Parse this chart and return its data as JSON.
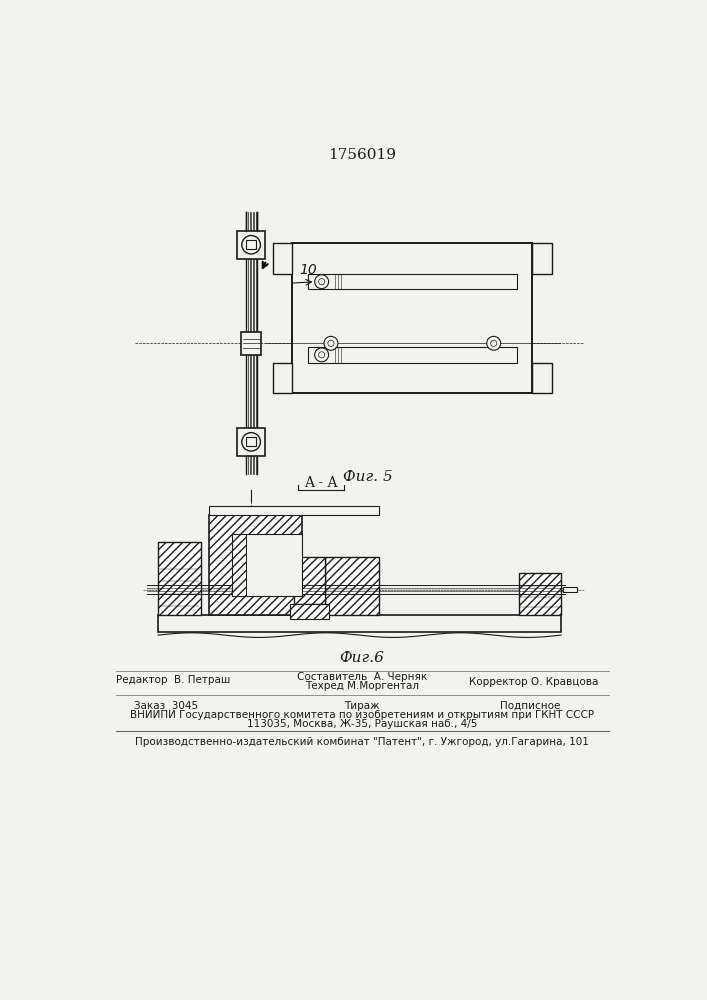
{
  "patent_number": "1756019",
  "fig5_label": "Фиг. 5",
  "fig6_label": "Фиг.6",
  "section_label": "A - A",
  "number_label": "10",
  "bg_color": "#f2f2ee",
  "line_color": "#1a1a1a",
  "footer": {
    "editor": "Редактор  В. Петраш",
    "composer": "Составитель  А. Черняк",
    "techred": "Техред М.Моргентал",
    "corrector": "Корректор О. Кравцова",
    "order": "Заказ  3045",
    "circulation": "Тираж",
    "subscription": "Подписное",
    "vniipи": "ВНИИПИ Государственного комитета по изобретениям и открытиям при ГКНТ СССР",
    "address": "113035, Москва, Ж-35, Раушская наб., 4/5",
    "factory": "Производственно-издательский комбинат \"Патент\", г. Ужгород, ул.Гагарина, 101"
  }
}
